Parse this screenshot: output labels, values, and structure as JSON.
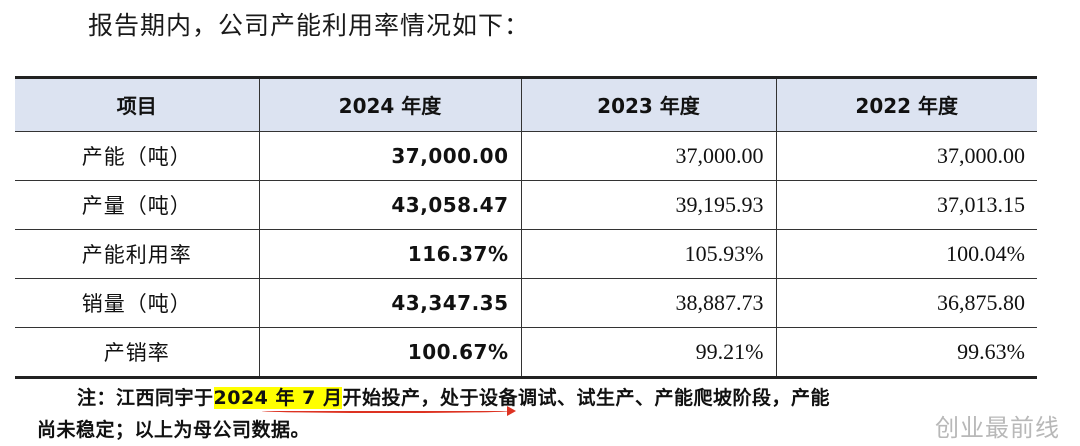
{
  "intro": "报告期内，公司产能利用率情况如下：",
  "table": {
    "headers": [
      "项目",
      "2024 年度",
      "2023 年度",
      "2022 年度"
    ],
    "rows": [
      {
        "label": "产能（吨）",
        "y2024": "37,000.00",
        "y2023": "37,000.00",
        "y2022": "37,000.00"
      },
      {
        "label": "产量（吨）",
        "y2024": "43,058.47",
        "y2023": "39,195.93",
        "y2022": "37,013.15"
      },
      {
        "label": "产能利用率",
        "y2024": "116.37%",
        "y2023": "105.93%",
        "y2022": "100.04%"
      },
      {
        "label": "销量（吨）",
        "y2024": "43,347.35",
        "y2023": "38,887.73",
        "y2022": "36,875.80"
      },
      {
        "label": "产销率",
        "y2024": "100.67%",
        "y2023": "99.21%",
        "y2022": "99.63%"
      }
    ]
  },
  "note": {
    "prefix": "注：江西同宇于",
    "highlight": "2024 年 7 月",
    "rest_line1": "开始投产，处于设备调试、试生产、产能爬坡阶段，产能",
    "line2": "尚未稳定；以上为母公司数据。"
  },
  "watermark": "创业最前线",
  "colors": {
    "header_bg": "#dce3f1",
    "highlight": "#ffff00",
    "annotation": "#dd3322"
  }
}
